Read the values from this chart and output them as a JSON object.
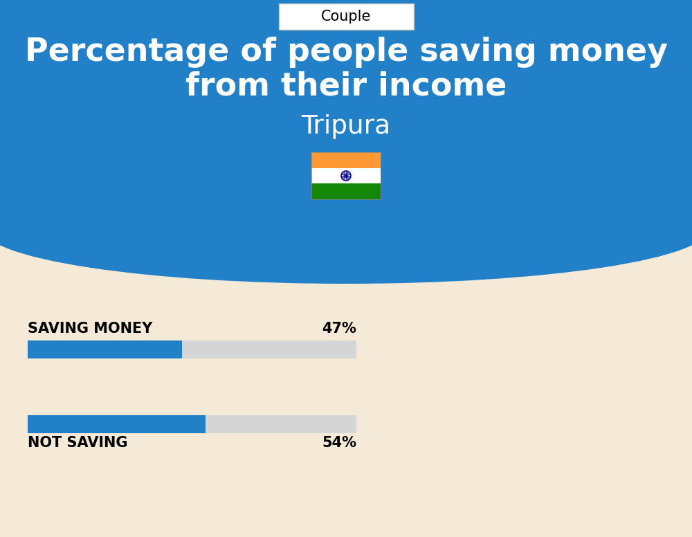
{
  "title_line1": "Percentage of people saving money",
  "title_line2": "from their income",
  "subtitle": "Tripura",
  "tab_label": "Couple",
  "bg_top_color": "#2180C8",
  "bg_bottom_color": "#F5EAD8",
  "title_color": "#FFFFFF",
  "subtitle_color": "#FFFFFF",
  "bar_blue": "#2180C8",
  "bar_gray": "#D5D5D5",
  "bar1_label": "SAVING MONEY",
  "bar1_value": 47,
  "bar1_pct": "47%",
  "bar2_label": "NOT SAVING",
  "bar2_value": 54,
  "bar2_pct": "54%",
  "label_color": "#000000",
  "pct_color": "#000000",
  "flag_orange": "#FF9933",
  "flag_green": "#138808",
  "flag_navy": "#000080"
}
